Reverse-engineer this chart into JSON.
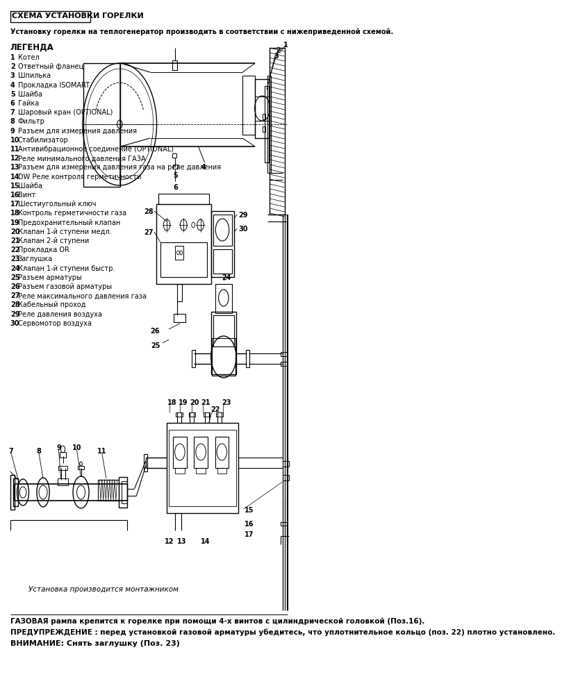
{
  "title": "СХЕМА УСТАНОВКИ ГОРЕЛКИ",
  "subtitle": "Установку горелки на теплогенератор производить в соответствии с нижеприведенной схемой.",
  "legend_title": "ЛЕГЕНДА",
  "legend_items": [
    [
      "1",
      "Котел"
    ],
    [
      "2",
      "Ответный фланец"
    ],
    [
      "3",
      "Шпилька"
    ],
    [
      "4",
      "Прокладка ISOMART"
    ],
    [
      "5",
      "Шайба"
    ],
    [
      "6",
      "Гайка"
    ],
    [
      "7",
      "Шаровый кран (OPTIONAL)"
    ],
    [
      "8",
      "Фильтр"
    ],
    [
      "9",
      "Разъем для измерения давления"
    ],
    [
      "10",
      "Стабилизатор"
    ],
    [
      "11",
      "Антивибрационное соединение (OPTIONAL)"
    ],
    [
      "12",
      "Реле минимального давления ГАЗА"
    ],
    [
      "13",
      "Разъем для измерения давления газа на реле давления"
    ],
    [
      "14",
      "DW Реле контроля герметичности"
    ],
    [
      "15",
      "Шайба"
    ],
    [
      "16",
      "Винт"
    ],
    [
      "17",
      "Шестиугольный ключ"
    ],
    [
      "18",
      "Контроль герметичности газа"
    ],
    [
      "19",
      "Предохранительный клапан"
    ],
    [
      "20",
      "Клапан 1-й ступени медл."
    ],
    [
      "21",
      "Клапан 2-й ступени"
    ],
    [
      "22",
      "Прокладка OR"
    ],
    [
      "23",
      "Заглушка"
    ],
    [
      "24",
      "Клапан 1-й ступени быстр."
    ],
    [
      "25",
      "Разъем арматуры"
    ],
    [
      "26",
      "Разъем газовой арматуры"
    ],
    [
      "27",
      "Реле максимального давления газа"
    ],
    [
      "28",
      "Кабельный проход"
    ],
    [
      "29",
      "Реле давления воздуха"
    ],
    [
      "30",
      "Сервомотор воздуха"
    ]
  ],
  "footer1": "ГАЗОВАЯ рампа крепится к горелке при помощи 4-х винтов с цилиндрической головкой (Поз.16).",
  "footer2": "ПРЕДУПРЕЖДЕНИЕ : перед установкой газовой арматуры убедитесь, что уплотнительное кольцо (поз. 22) плотно установлено.",
  "footer3": "ВНИМАНИЕ: Снять заглушку (Поз. 23)",
  "bottom_note": "Установка производится монтажником",
  "bg_color": "#ffffff",
  "line_color": "#000000"
}
